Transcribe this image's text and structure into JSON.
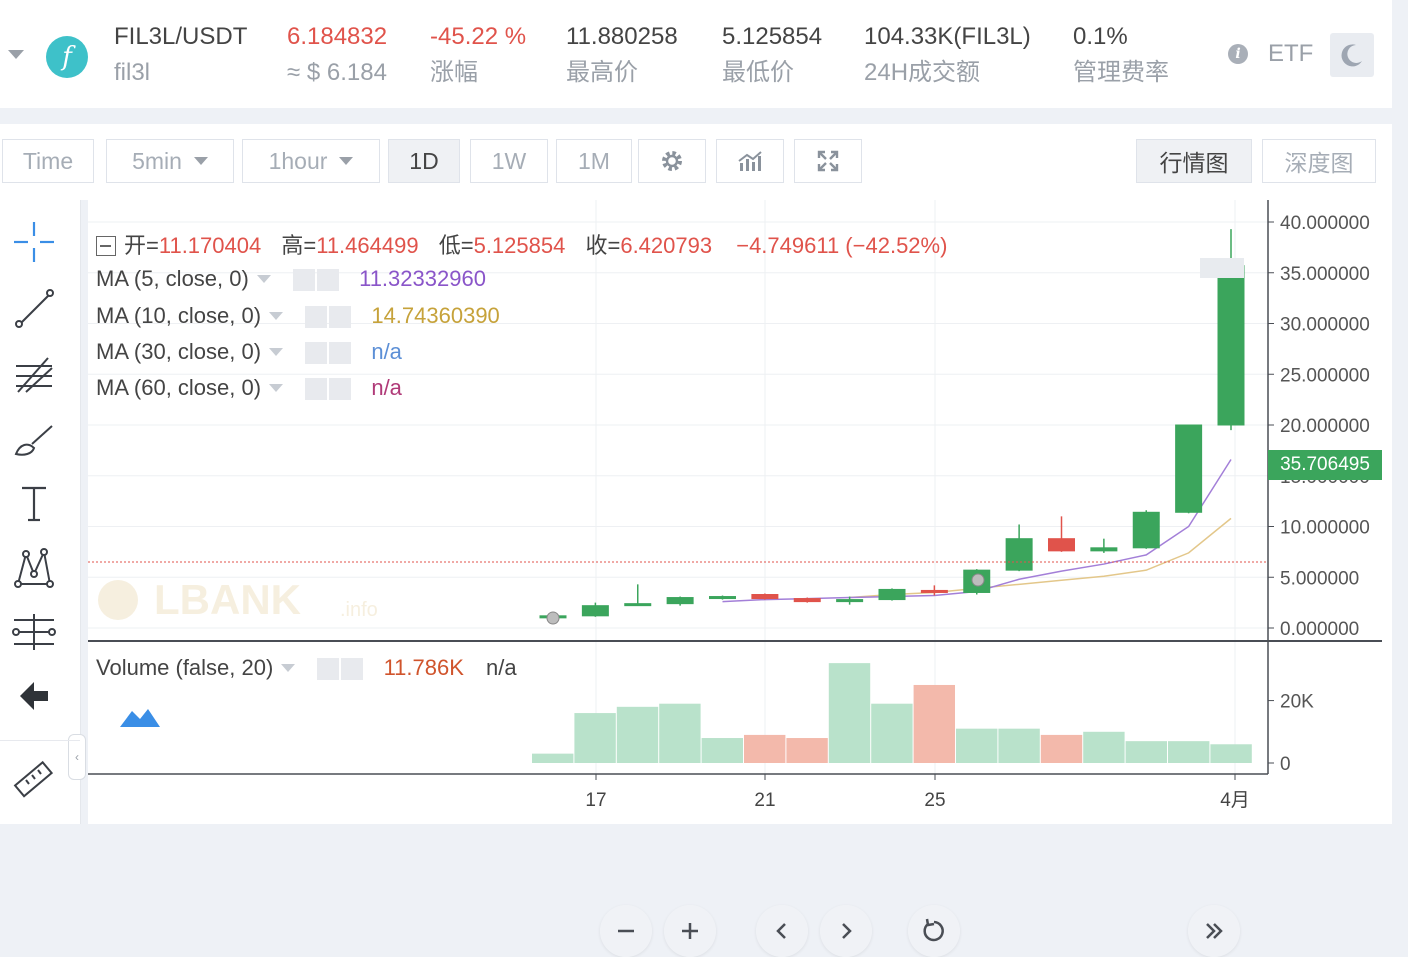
{
  "ticker": {
    "pair": "FIL3L/USDT",
    "sub_name": "fil3l",
    "price": "6.184832",
    "price_usd": "≈ $ 6.184",
    "change": "-45.22 %",
    "change_label": "涨幅",
    "high": "11.880258",
    "high_label": "最高价",
    "low": "5.125854",
    "low_label": "最低价",
    "volume": "104.33K(FIL3L)",
    "volume_label": "24H成交额",
    "fee": "0.1%",
    "fee_label": "管理费率",
    "etf_label": "ETF",
    "logo_glyph": "f"
  },
  "toolbar": {
    "time": "Time",
    "min": "5min",
    "hour": "1hour",
    "d1": "1D",
    "w1": "1W",
    "m1": "1M",
    "chart_tab": "行情图",
    "depth_tab": "深度图"
  },
  "legend": {
    "ohlc_open_label": "开=",
    "ohlc_open": "11.170404",
    "ohlc_high_label": "高=",
    "ohlc_high": "11.464499",
    "ohlc_low_label": "低=",
    "ohlc_low": "5.125854",
    "ohlc_close_label": "收=",
    "ohlc_close": "6.420793",
    "ohlc_change": "−4.749611 (−42.52%)",
    "ma5_label": "MA (5, close, 0)",
    "ma5_val": "11.32332960",
    "ma10_label": "MA (10, close, 0)",
    "ma10_val": "14.74360390",
    "ma30_label": "MA (30, close, 0)",
    "ma30_val": "n/a",
    "ma60_label": "MA (60, close, 0)",
    "ma60_val": "n/a",
    "vol_label": "Volume (false, 20)",
    "vol_val": "11.786K",
    "vol_na": "n/a",
    "last_price": "35.706495",
    "watermark": "LBANK",
    "watermark_sub": ".info"
  },
  "chart_data": {
    "type": "candlestick",
    "x_ticks": [
      "17",
      "21",
      "25",
      "4月"
    ],
    "y_ticks": [
      "40.000000",
      "35.000000",
      "30.000000",
      "25.000000",
      "20.000000",
      "15.000000",
      "10.000000",
      "5.000000",
      "0.000000"
    ],
    "ylim": [
      0,
      40
    ],
    "volume_ticks": [
      "20K",
      "0"
    ],
    "candles": [
      {
        "o": 1.0,
        "h": 1.3,
        "l": 0.9,
        "c": 1.2
      },
      {
        "o": 1.2,
        "h": 2.5,
        "l": 1.1,
        "c": 2.2
      },
      {
        "o": 2.3,
        "h": 4.3,
        "l": 2.2,
        "c": 2.4
      },
      {
        "o": 2.4,
        "h": 3.1,
        "l": 2.2,
        "c": 3.0
      },
      {
        "o": 3.0,
        "h": 3.2,
        "l": 2.8,
        "c": 3.1
      },
      {
        "o": 3.3,
        "h": 3.4,
        "l": 2.8,
        "c": 2.9
      },
      {
        "o": 2.9,
        "h": 3.0,
        "l": 2.5,
        "c": 2.6
      },
      {
        "o": 2.6,
        "h": 3.1,
        "l": 2.3,
        "c": 2.8
      },
      {
        "o": 2.8,
        "h": 3.9,
        "l": 2.7,
        "c": 3.8
      },
      {
        "o": 3.7,
        "h": 4.2,
        "l": 3.2,
        "c": 3.5
      },
      {
        "o": 3.5,
        "h": 5.8,
        "l": 3.3,
        "c": 5.7
      },
      {
        "o": 5.7,
        "h": 10.2,
        "l": 5.6,
        "c": 8.8
      },
      {
        "o": 8.8,
        "h": 11.0,
        "l": 7.5,
        "c": 7.6
      },
      {
        "o": 7.6,
        "h": 8.8,
        "l": 7.4,
        "c": 7.9
      },
      {
        "o": 7.9,
        "h": 11.6,
        "l": 7.8,
        "c": 11.4
      },
      {
        "o": 11.4,
        "h": 20.0,
        "l": 11.3,
        "c": 20.0
      },
      {
        "o": 20.0,
        "h": 39.3,
        "l": 19.5,
        "c": 35.7
      }
    ],
    "ma5": [
      2.6,
      2.8,
      2.9,
      3.0,
      3.1,
      3.2,
      3.6,
      4.8,
      5.6,
      6.3,
      7.2,
      10.0,
      16.6
    ],
    "ma10": [
      3.0,
      3.3,
      3.5,
      3.9,
      4.3,
      4.7,
      5.1,
      5.7,
      7.4,
      10.8
    ],
    "volume": [
      3,
      16,
      18,
      19,
      8,
      9,
      8,
      32,
      19,
      25,
      11,
      11,
      9,
      10,
      7,
      7,
      6
    ],
    "volume_up": [
      true,
      true,
      true,
      true,
      true,
      false,
      false,
      true,
      true,
      false,
      true,
      true,
      false,
      true,
      true,
      true,
      true
    ],
    "colors": {
      "up": "#3ba55c",
      "down": "#e0534b",
      "ma5": "#a37fd8",
      "ma10": "#e3c78a"
    }
  }
}
